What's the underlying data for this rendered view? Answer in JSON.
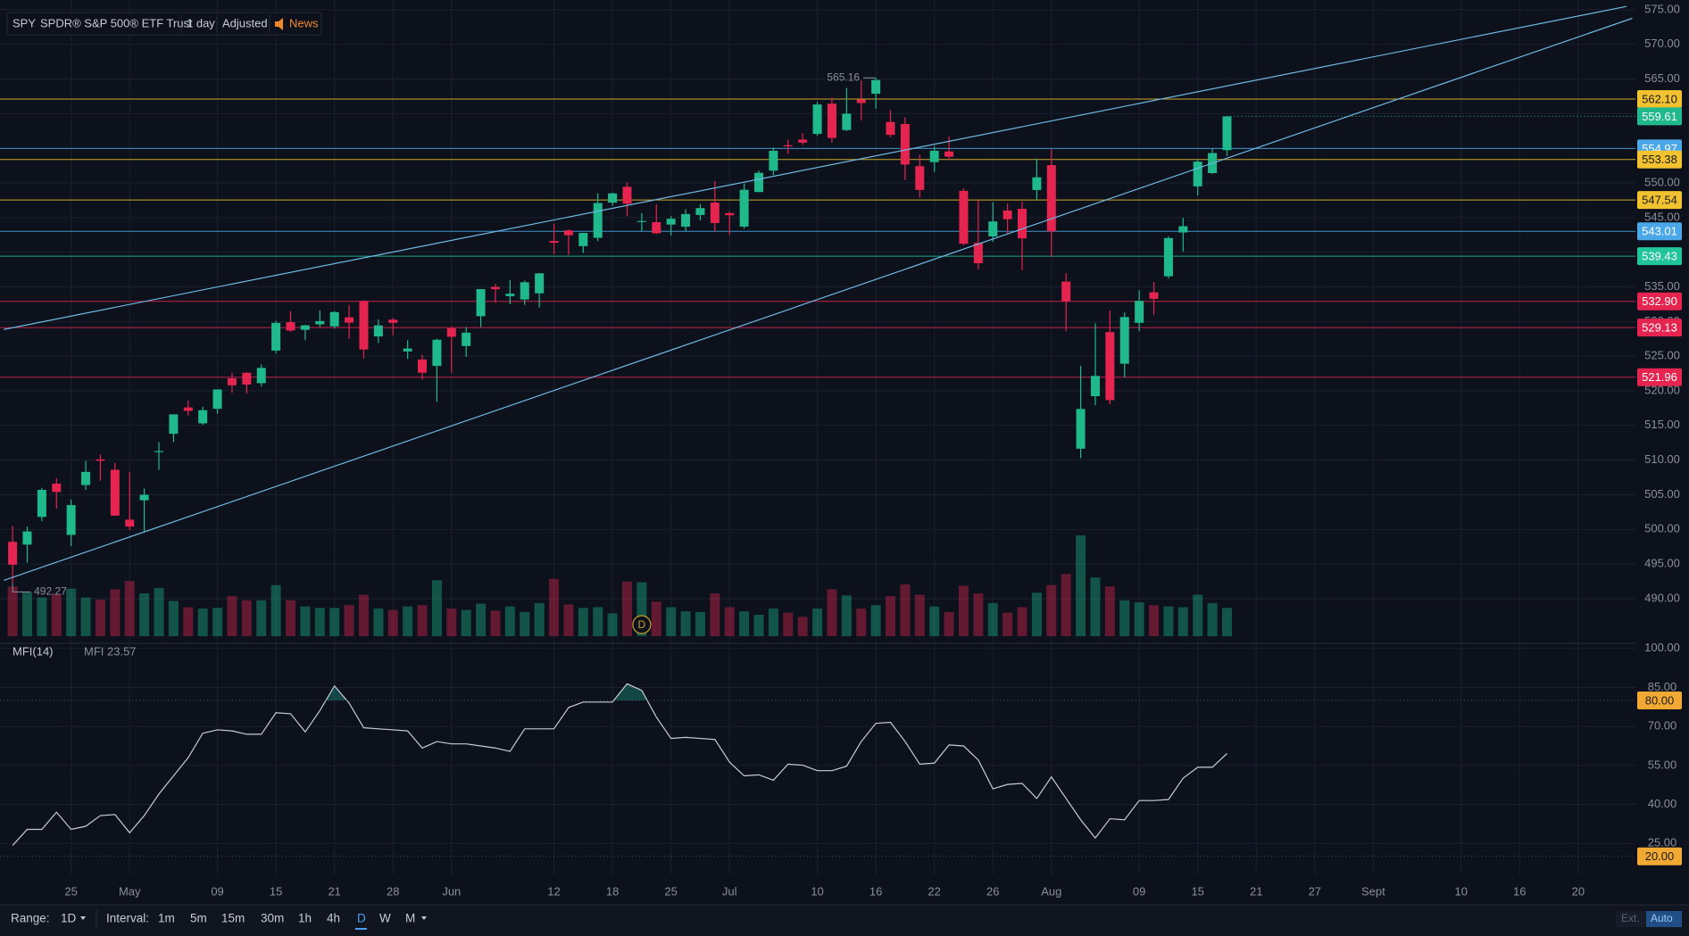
{
  "header": {
    "symbol": "SPY",
    "name": "SPDR® S&P 500® ETF Trust",
    "interval": "1 day",
    "adjust": "Adjusted",
    "news": "News"
  },
  "chart_data": {
    "type": "candlestick",
    "colors": {
      "up": "#1fb98c",
      "down": "#e5254f"
    },
    "ylim": [
      483.94,
      576.4
    ],
    "yticks": [
      {
        "value": 490,
        "label": "490.00"
      },
      {
        "value": 495,
        "label": "495.00"
      },
      {
        "value": 500,
        "label": "500.00"
      },
      {
        "value": 505,
        "label": "505.00"
      },
      {
        "value": 510,
        "label": "510.00"
      },
      {
        "value": 515,
        "label": "515.00"
      },
      {
        "value": 520,
        "label": "520.00"
      },
      {
        "value": 525,
        "label": "525.00"
      },
      {
        "value": 530,
        "label": "530.00"
      },
      {
        "value": 535,
        "label": "535.00"
      },
      {
        "value": 540,
        "label": "540.00"
      },
      {
        "value": 545,
        "label": "545.00"
      },
      {
        "value": 550,
        "label": "550.00"
      },
      {
        "value": 555,
        "label": "555.00"
      },
      {
        "value": 560,
        "label": "560.00"
      },
      {
        "value": 565,
        "label": "565.00"
      },
      {
        "value": 570,
        "label": "570.00"
      },
      {
        "value": 575,
        "label": "575.00"
      }
    ],
    "grid": true,
    "ohlc": [
      [
        498.2,
        500.5,
        492.27,
        494.9
      ],
      [
        497.8,
        500.4,
        495.2,
        499.7
      ],
      [
        501.8,
        506.0,
        501.2,
        505.7
      ],
      [
        506.6,
        507.4,
        503.0,
        505.4
      ],
      [
        499.2,
        504.3,
        497.6,
        503.5
      ],
      [
        506.4,
        509.9,
        505.7,
        508.3
      ],
      [
        510.1,
        510.8,
        507.0,
        509.9
      ],
      [
        508.6,
        509.6,
        501.98,
        501.98
      ],
      [
        501.4,
        508.3,
        499.9,
        500.4
      ],
      [
        504.2,
        505.9,
        499.6,
        505.0
      ],
      [
        511.2,
        512.6,
        508.6,
        511.3
      ],
      [
        513.8,
        516.6,
        512.6,
        516.6
      ],
      [
        517.6,
        518.6,
        516.4,
        517.1
      ],
      [
        515.3,
        517.7,
        515.1,
        517.2
      ],
      [
        517.4,
        520.2,
        516.7,
        520.2
      ],
      [
        521.8,
        522.6,
        519.7,
        520.8
      ],
      [
        522.6,
        522.7,
        519.6,
        520.9
      ],
      [
        521.1,
        523.8,
        520.6,
        523.3
      ],
      [
        525.8,
        530.1,
        525.4,
        529.8
      ],
      [
        529.9,
        531.5,
        528.5,
        528.7
      ],
      [
        528.8,
        529.5,
        527.3,
        529.45
      ],
      [
        529.6,
        531.6,
        529.2,
        530.06
      ],
      [
        529.3,
        531.5,
        529.0,
        531.36
      ],
      [
        530.6,
        532.4,
        527.5,
        529.83
      ],
      [
        532.96,
        533.1,
        524.7,
        525.96
      ],
      [
        527.85,
        530.3,
        526.9,
        529.44
      ],
      [
        530.27,
        530.5,
        528.0,
        529.81
      ],
      [
        525.68,
        527.3,
        524.6,
        526.1
      ],
      [
        524.52,
        525.2,
        521.6,
        522.61
      ],
      [
        523.59,
        527.5,
        518.4,
        527.37
      ],
      [
        529.02,
        529.3,
        522.6,
        527.8
      ],
      [
        526.46,
        529.2,
        524.9,
        528.39
      ],
      [
        530.77,
        534.7,
        529.2,
        534.67
      ],
      [
        534.98,
        535.4,
        532.7,
        534.66
      ],
      [
        533.66,
        536.0,
        532.5,
        534.01
      ],
      [
        533.18,
        535.9,
        532.4,
        535.66
      ],
      [
        534.07,
        537.0,
        532.0,
        536.95
      ],
      [
        541.63,
        544.1,
        539.7,
        541.36
      ],
      [
        543.15,
        543.3,
        539.6,
        542.45
      ],
      [
        540.88,
        542.8,
        539.9,
        542.78
      ],
      [
        542.08,
        548.5,
        541.6,
        547.1
      ],
      [
        547.16,
        548.6,
        546.7,
        548.49
      ],
      [
        549.44,
        550.1,
        545.2,
        547.0
      ],
      [
        544.4,
        545.65,
        543.0,
        544.51
      ],
      [
        544.33,
        546.9,
        542.6,
        542.74
      ],
      [
        543.99,
        545.2,
        542.4,
        544.83
      ],
      [
        543.69,
        546.2,
        543.0,
        545.51
      ],
      [
        545.37,
        546.96,
        544.6,
        546.37
      ],
      [
        547.16,
        550.3,
        542.95,
        544.22
      ],
      [
        545.63,
        545.9,
        542.5,
        545.34
      ],
      [
        543.7,
        549.9,
        543.4,
        549.01
      ],
      [
        548.69,
        551.8,
        548.65,
        551.46
      ],
      [
        551.77,
        555.1,
        551.1,
        554.64
      ],
      [
        555.44,
        556.25,
        554.2,
        555.28
      ],
      [
        556.26,
        557.2,
        555.5,
        555.82
      ],
      [
        557.07,
        561.7,
        556.8,
        561.32
      ],
      [
        561.44,
        562.3,
        555.8,
        556.48
      ],
      [
        557.63,
        563.7,
        557.5,
        559.99
      ],
      [
        562.03,
        564.8,
        559.0,
        561.53
      ],
      [
        562.87,
        565.16,
        560.7,
        564.86
      ],
      [
        558.8,
        560.5,
        556.6,
        556.94
      ],
      [
        558.51,
        559.5,
        550.4,
        552.66
      ],
      [
        552.42,
        554.1,
        547.9,
        548.99
      ],
      [
        553.0,
        555.3,
        551.6,
        554.65
      ],
      [
        554.54,
        556.7,
        553.3,
        553.78
      ],
      [
        548.86,
        549.2,
        541.0,
        541.23
      ],
      [
        541.35,
        547.5,
        537.5,
        538.41
      ],
      [
        542.28,
        547.2,
        541.5,
        544.44
      ],
      [
        546.02,
        547.05,
        542.7,
        544.76
      ],
      [
        546.26,
        547.3,
        537.4,
        542.0
      ],
      [
        548.98,
        553.5,
        547.6,
        550.81
      ],
      [
        552.57,
        554.9,
        539.4,
        543.01
      ],
      [
        535.75,
        536.99,
        528.6,
        532.9
      ],
      [
        511.64,
        523.6,
        510.27,
        517.38
      ],
      [
        519.22,
        529.75,
        517.9,
        522.15
      ],
      [
        528.47,
        531.6,
        518.05,
        518.66
      ],
      [
        523.91,
        531.3,
        521.9,
        530.65
      ],
      [
        529.81,
        534.5,
        528.6,
        532.99
      ],
      [
        534.21,
        535.7,
        530.95,
        533.27
      ],
      [
        536.53,
        542.3,
        536.2,
        542.04
      ],
      [
        542.85,
        544.96,
        540.1,
        543.75
      ],
      [
        549.5,
        553.4,
        548.2,
        553.07
      ],
      [
        551.42,
        555.0,
        551.3,
        554.31
      ],
      [
        554.73,
        559.6,
        553.9,
        559.61
      ]
    ],
    "volume": [
      72,
      64,
      56,
      61,
      69,
      56,
      53,
      68,
      80,
      62,
      70,
      51,
      42,
      40,
      41,
      58,
      52,
      52,
      74,
      52,
      43,
      41,
      41,
      45,
      60,
      40,
      38,
      43,
      45,
      81,
      40,
      38,
      47,
      37,
      43,
      35,
      48,
      83,
      46,
      41,
      42,
      33,
      79,
      78,
      50,
      42,
      36,
      35,
      62,
      42,
      36,
      31,
      40,
      34,
      28,
      40,
      68,
      59,
      40,
      45,
      58,
      75,
      60,
      43,
      35,
      73,
      62,
      48,
      34,
      42,
      63,
      74,
      90,
      146,
      85,
      72,
      52,
      49,
      45,
      43,
      42,
      60,
      48,
      41
    ],
    "x_labels": [
      {
        "index": 4,
        "label": "25"
      },
      {
        "index": 8,
        "label": "May"
      },
      {
        "index": 14,
        "label": "09"
      },
      {
        "index": 18,
        "label": "15"
      },
      {
        "index": 22,
        "label": "21"
      },
      {
        "index": 26,
        "label": "28"
      },
      {
        "index": 30,
        "label": "Jun"
      },
      {
        "index": 37,
        "label": "12"
      },
      {
        "index": 41,
        "label": "18"
      },
      {
        "index": 45,
        "label": "25"
      },
      {
        "index": 49,
        "label": "Jul"
      },
      {
        "index": 55,
        "label": "10"
      },
      {
        "index": 59,
        "label": "16"
      },
      {
        "index": 63,
        "label": "22"
      },
      {
        "index": 67,
        "label": "26"
      },
      {
        "index": 71,
        "label": "Aug"
      },
      {
        "index": 77,
        "label": "09"
      },
      {
        "index": 81,
        "label": "15"
      },
      {
        "index": 85,
        "label": "21"
      },
      {
        "index": 89,
        "label": "27"
      },
      {
        "index": 93,
        "label": "Sept"
      },
      {
        "index": 99,
        "label": "10"
      },
      {
        "index": 103,
        "label": "16"
      },
      {
        "index": 107,
        "label": "20"
      }
    ],
    "levels": [
      {
        "value": 562.1,
        "label": "562.10",
        "color": "#f2c230"
      },
      {
        "value": 554.97,
        "label": "554.97",
        "color": "#4aa8e8"
      },
      {
        "value": 553.38,
        "label": "553.38",
        "color": "#f2c230"
      },
      {
        "value": 547.54,
        "label": "547.54",
        "color": "#f2c230"
      },
      {
        "value": 543.01,
        "label": "543.01",
        "color": "#4aa8e8"
      },
      {
        "value": 539.43,
        "label": "539.43",
        "color": "#22c59a"
      },
      {
        "value": 532.9,
        "label": "532.90",
        "color": "#e5254f"
      },
      {
        "value": 529.13,
        "label": "529.13",
        "color": "#e5254f"
      },
      {
        "value": 521.96,
        "label": "521.96",
        "color": "#e5254f"
      }
    ],
    "trendlines": [
      {
        "x": [
          -0.6,
          110.3
        ],
        "y": [
          528.85,
          575.47
        ]
      },
      {
        "x": [
          -0.6,
          110.7
        ],
        "y": [
          492.64,
          573.76
        ]
      }
    ],
    "trendline_color": "#6fb8e0",
    "dividend_marker": {
      "index": 43,
      "label": "D"
    }
  },
  "indicator": {
    "type": "line",
    "title": "MFI(14)",
    "readout": "MFI 23.57",
    "color": "#c8ccd4",
    "ylim": [
      13.06,
      101.65
    ],
    "yticks": [
      {
        "value": 25,
        "label": "25.00"
      },
      {
        "value": 40,
        "label": "40.00"
      },
      {
        "value": 55,
        "label": "55.00"
      },
      {
        "value": 70,
        "label": "70.00"
      },
      {
        "value": 85,
        "label": "85.00"
      },
      {
        "value": 100,
        "label": "100.00"
      }
    ],
    "levels": [
      {
        "value": 80,
        "label": "80.00"
      },
      {
        "value": 20,
        "label": "20.00"
      }
    ],
    "values": [
      24.2,
      30.4,
      30.4,
      37.0,
      30.4,
      31.6,
      35.7,
      36.1,
      29.1,
      35.7,
      44.0,
      51.0,
      58.0,
      67.4,
      68.7,
      68.3,
      67.0,
      67.0,
      75.3,
      74.9,
      67.9,
      76.1,
      85.6,
      79.0,
      69.5,
      69.1,
      68.7,
      68.3,
      61.7,
      64.2,
      63.3,
      63.3,
      62.5,
      61.7,
      60.4,
      69.1,
      69.1,
      69.1,
      77.3,
      79.4,
      79.4,
      79.4,
      86.4,
      83.9,
      73.6,
      65.4,
      65.8,
      65.4,
      65.0,
      56.3,
      51.0,
      51.4,
      49.3,
      55.5,
      55.1,
      53.0,
      53.0,
      54.7,
      64.2,
      71.2,
      71.6,
      64.2,
      55.5,
      55.9,
      62.9,
      62.5,
      57.1,
      46.0,
      47.7,
      48.1,
      42.3,
      50.6,
      42.3,
      34.1,
      27.1,
      34.5,
      34.1,
      41.5,
      41.5,
      41.9,
      50.1,
      54.3,
      54.3,
      59.6
    ]
  },
  "toolbar": {
    "range_label": "Range:",
    "range": "1D",
    "interval_label": "Interval:",
    "intervals": [
      "1m",
      "5m",
      "15m",
      "30m",
      "1h",
      "4h",
      "D",
      "W",
      "M"
    ],
    "active": "D",
    "ext": "Ext.",
    "auto": "Auto"
  }
}
